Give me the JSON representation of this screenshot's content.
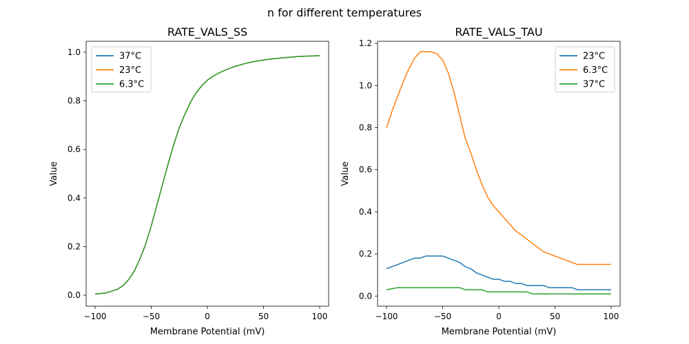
{
  "figure": {
    "suptitle": "n for different temperatures"
  },
  "chart_data": [
    {
      "type": "line",
      "title": "RATE_VALS_SS",
      "xlabel": "Membrane Potential (mV)",
      "ylabel": "Value",
      "xlim": [
        -108,
        108
      ],
      "ylim": [
        -0.045,
        1.045
      ],
      "xticks": [
        -100,
        -50,
        0,
        50,
        100
      ],
      "xtick_labels": [
        "−100",
        "−50",
        "0",
        "50",
        "100"
      ],
      "yticks": [
        0.0,
        0.2,
        0.4,
        0.6,
        0.8,
        1.0
      ],
      "ytick_labels": [
        "0.0",
        "0.2",
        "0.4",
        "0.6",
        "0.8",
        "1.0"
      ],
      "grid": false,
      "legend_position": "upper-left",
      "x": [
        -100,
        -95,
        -90,
        -85,
        -80,
        -75,
        -70,
        -65,
        -60,
        -55,
        -50,
        -45,
        -40,
        -35,
        -30,
        -25,
        -20,
        -15,
        -10,
        -5,
        0,
        5,
        10,
        15,
        20,
        25,
        30,
        35,
        40,
        45,
        50,
        55,
        60,
        65,
        70,
        75,
        80,
        85,
        90,
        95,
        100
      ],
      "series": [
        {
          "name": "37°C",
          "color": "#1f77b4",
          "values": [
            0.004,
            0.007,
            0.01,
            0.017,
            0.025,
            0.04,
            0.065,
            0.1,
            0.15,
            0.21,
            0.285,
            0.37,
            0.455,
            0.54,
            0.62,
            0.69,
            0.745,
            0.795,
            0.833,
            0.862,
            0.885,
            0.901,
            0.914,
            0.925,
            0.934,
            0.942,
            0.949,
            0.955,
            0.96,
            0.964,
            0.968,
            0.971,
            0.974,
            0.976,
            0.978,
            0.98,
            0.982,
            0.983,
            0.984,
            0.985,
            0.986
          ]
        },
        {
          "name": "23°C",
          "color": "#ff7f0e",
          "values": [
            0.004,
            0.007,
            0.01,
            0.017,
            0.025,
            0.04,
            0.065,
            0.1,
            0.15,
            0.21,
            0.285,
            0.37,
            0.455,
            0.54,
            0.62,
            0.69,
            0.745,
            0.795,
            0.833,
            0.862,
            0.885,
            0.901,
            0.914,
            0.925,
            0.934,
            0.942,
            0.949,
            0.955,
            0.96,
            0.964,
            0.968,
            0.971,
            0.974,
            0.976,
            0.978,
            0.98,
            0.982,
            0.983,
            0.984,
            0.985,
            0.986
          ]
        },
        {
          "name": "6.3°C",
          "color": "#2ca02c",
          "values": [
            0.004,
            0.007,
            0.01,
            0.017,
            0.025,
            0.04,
            0.065,
            0.1,
            0.15,
            0.21,
            0.285,
            0.37,
            0.455,
            0.54,
            0.62,
            0.69,
            0.745,
            0.795,
            0.833,
            0.862,
            0.885,
            0.901,
            0.914,
            0.925,
            0.934,
            0.942,
            0.949,
            0.955,
            0.96,
            0.964,
            0.968,
            0.971,
            0.974,
            0.976,
            0.978,
            0.98,
            0.982,
            0.983,
            0.984,
            0.985,
            0.986
          ]
        }
      ]
    },
    {
      "type": "line",
      "title": "RATE_VALS_TAU",
      "xlabel": "Membrane Potential (mV)",
      "ylabel": "Value",
      "xlim": [
        -108,
        108
      ],
      "ylim": [
        -0.048,
        1.21
      ],
      "xticks": [
        -100,
        -50,
        0,
        50,
        100
      ],
      "xtick_labels": [
        "−100",
        "−50",
        "0",
        "50",
        "100"
      ],
      "yticks": [
        0.0,
        0.2,
        0.4,
        0.6,
        0.8,
        1.0,
        1.2
      ],
      "ytick_labels": [
        "0.0",
        "0.2",
        "0.4",
        "0.6",
        "0.8",
        "1.0",
        "1.2"
      ],
      "grid": false,
      "legend_position": "upper-right",
      "x": [
        -100,
        -95,
        -90,
        -85,
        -80,
        -75,
        -70,
        -65,
        -60,
        -55,
        -50,
        -45,
        -40,
        -35,
        -30,
        -25,
        -20,
        -15,
        -10,
        -5,
        0,
        5,
        10,
        15,
        20,
        25,
        30,
        35,
        40,
        45,
        50,
        55,
        60,
        65,
        70,
        75,
        80,
        85,
        90,
        95,
        100
      ],
      "series": [
        {
          "name": "23°C",
          "color": "#1f77b4",
          "values": [
            0.13,
            0.14,
            0.15,
            0.16,
            0.17,
            0.18,
            0.18,
            0.19,
            0.19,
            0.19,
            0.19,
            0.18,
            0.17,
            0.16,
            0.14,
            0.13,
            0.11,
            0.1,
            0.09,
            0.08,
            0.08,
            0.07,
            0.07,
            0.06,
            0.06,
            0.05,
            0.05,
            0.05,
            0.05,
            0.04,
            0.04,
            0.04,
            0.04,
            0.04,
            0.03,
            0.03,
            0.03,
            0.03,
            0.03,
            0.03,
            0.03
          ]
        },
        {
          "name": "6.3°C",
          "color": "#ff7f0e",
          "values": [
            0.8,
            0.88,
            0.95,
            1.02,
            1.08,
            1.13,
            1.16,
            1.16,
            1.16,
            1.15,
            1.12,
            1.06,
            0.97,
            0.86,
            0.75,
            0.68,
            0.6,
            0.53,
            0.47,
            0.43,
            0.4,
            0.37,
            0.34,
            0.31,
            0.29,
            0.27,
            0.25,
            0.23,
            0.21,
            0.2,
            0.19,
            0.18,
            0.17,
            0.16,
            0.15,
            0.15,
            0.15,
            0.15,
            0.15,
            0.15,
            0.15
          ]
        },
        {
          "name": "37°C",
          "color": "#2ca02c",
          "values": [
            0.03,
            0.035,
            0.04,
            0.04,
            0.04,
            0.04,
            0.04,
            0.04,
            0.04,
            0.04,
            0.04,
            0.04,
            0.04,
            0.04,
            0.03,
            0.03,
            0.03,
            0.03,
            0.02,
            0.02,
            0.02,
            0.02,
            0.02,
            0.02,
            0.02,
            0.02,
            0.01,
            0.01,
            0.01,
            0.01,
            0.01,
            0.01,
            0.01,
            0.01,
            0.01,
            0.01,
            0.01,
            0.01,
            0.01,
            0.01,
            0.01
          ]
        }
      ]
    }
  ]
}
